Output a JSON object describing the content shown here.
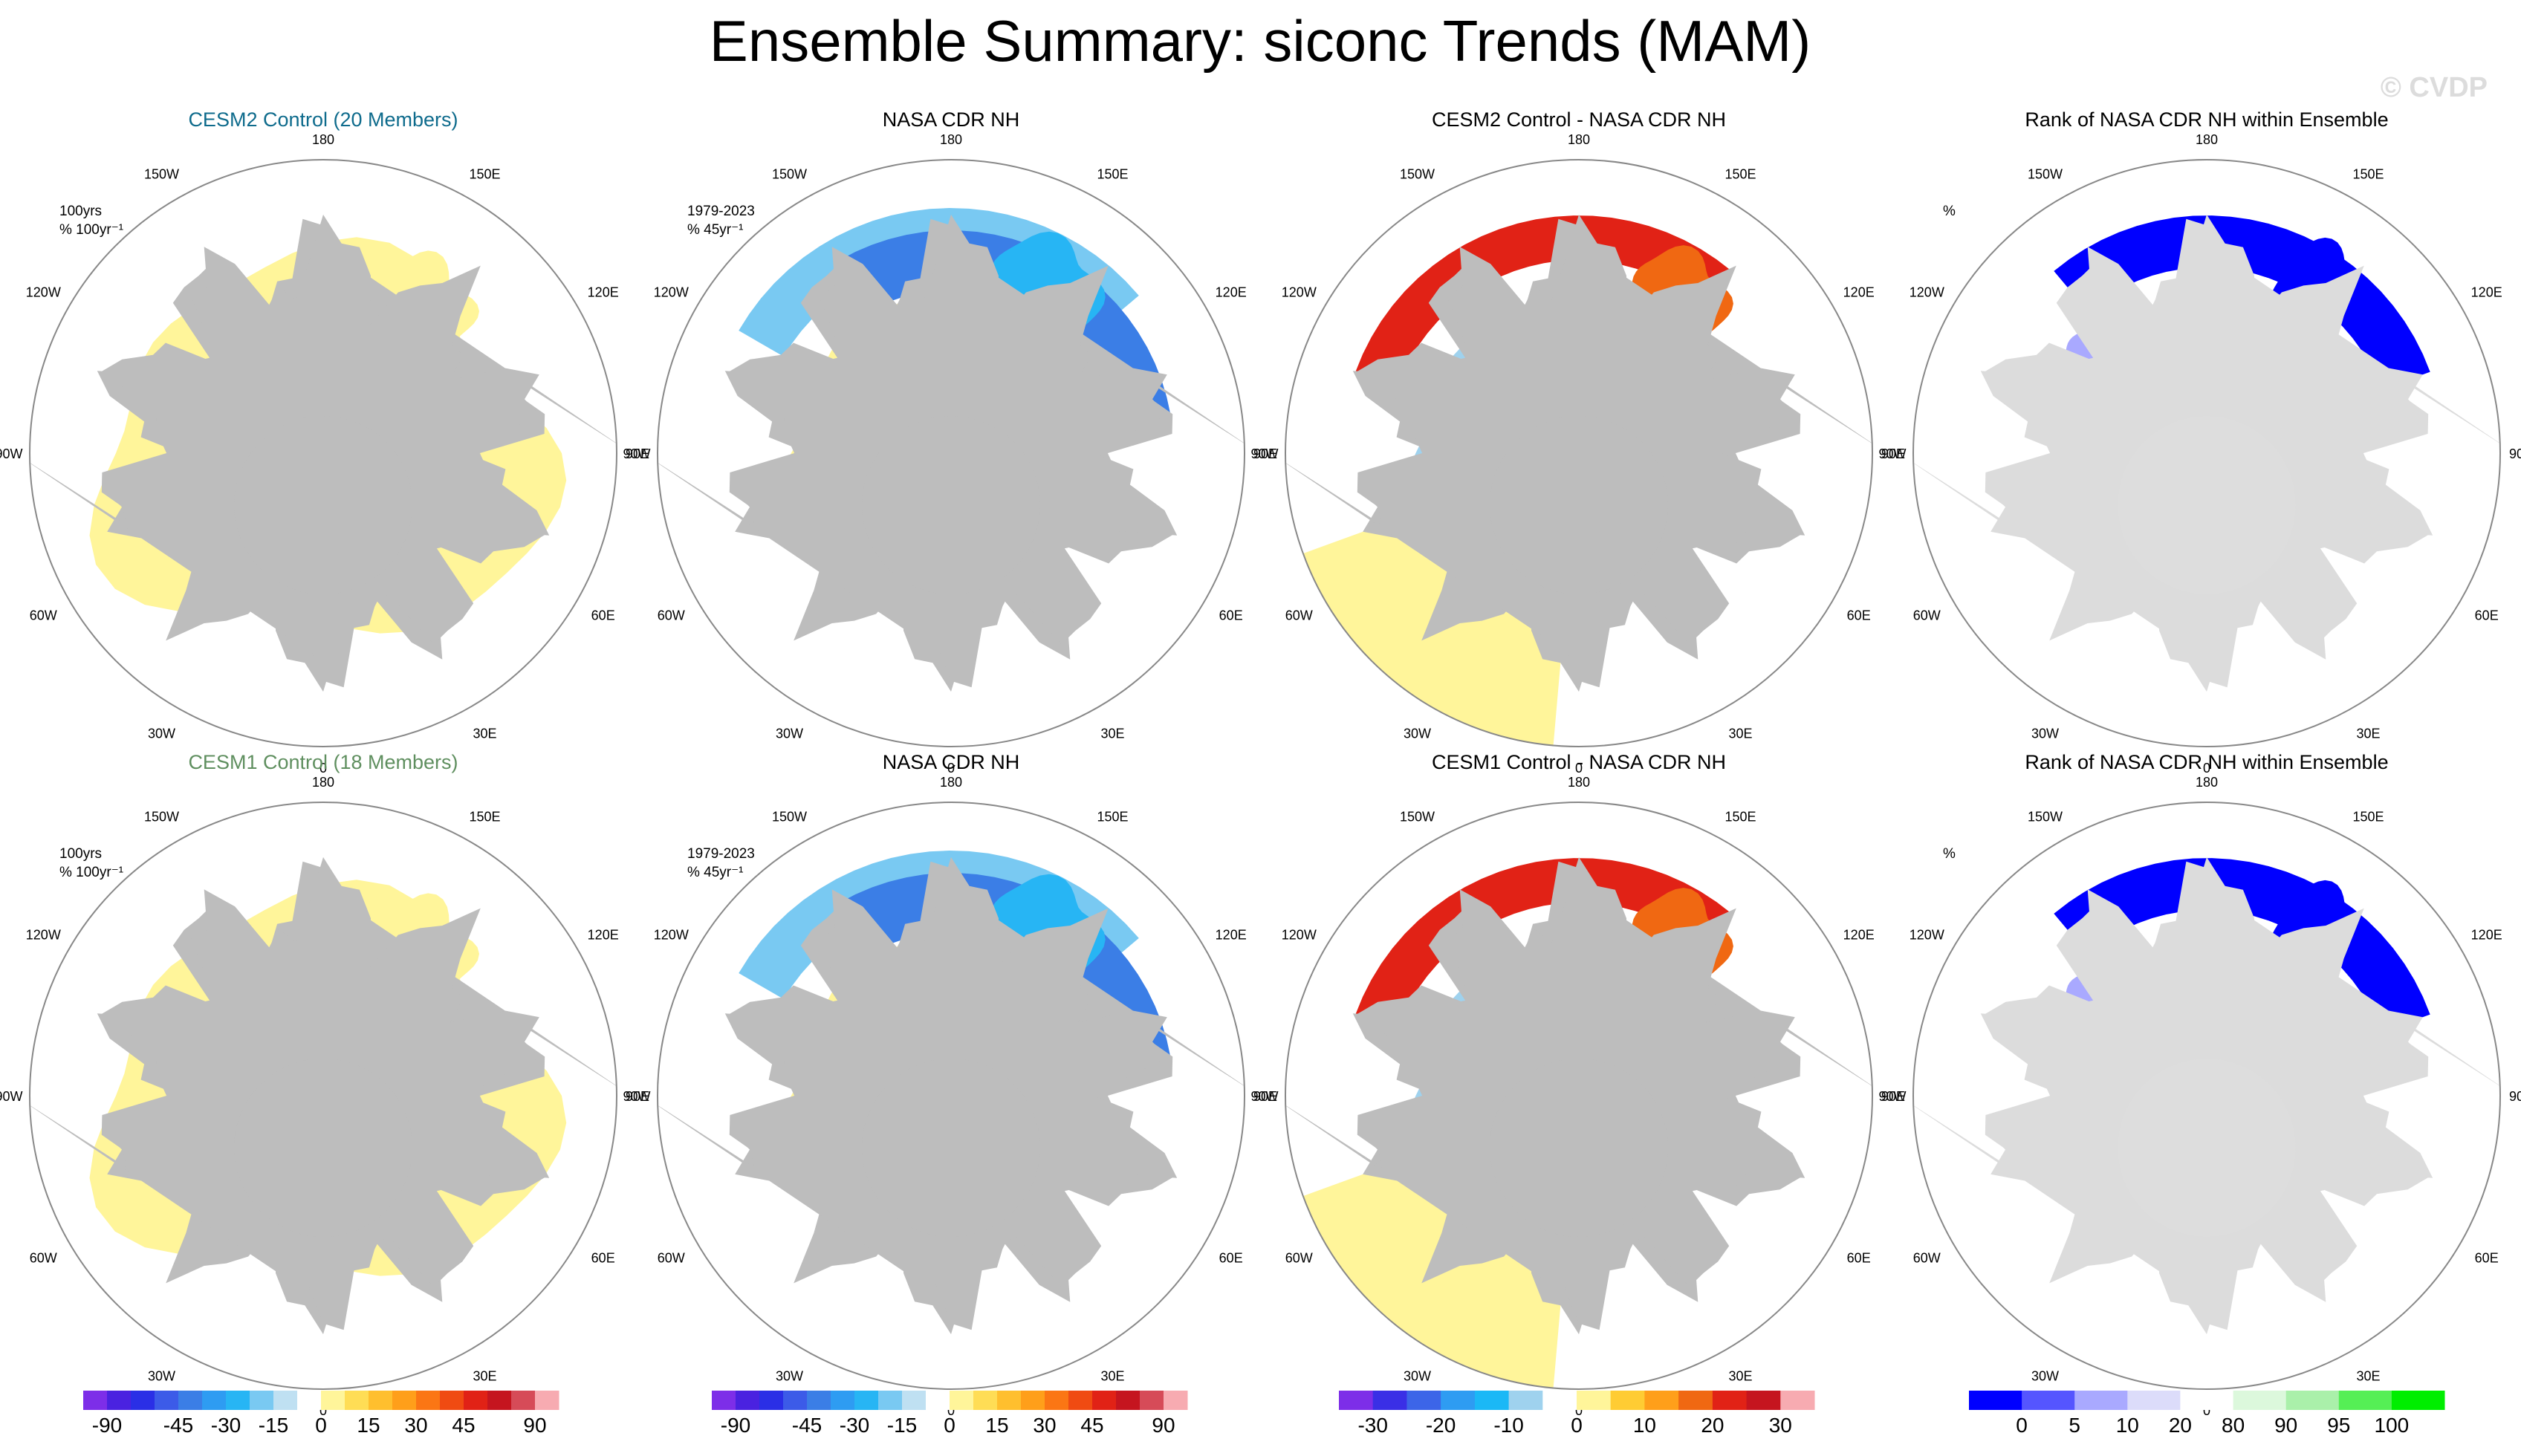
{
  "page": {
    "title": "Ensemble Summary: siconc Trends (MAM)",
    "watermark": "© CVDP"
  },
  "colors": {
    "land": "#bdbdbd",
    "rank_land": "#dcdcdc",
    "outline": "#888888",
    "cesm2_title": "#0e6b8c",
    "cesm1_title": "#5f8f5f"
  },
  "lon_labels": [
    "180",
    "150E",
    "120E",
    "90E",
    "60E",
    "30E",
    "0",
    "30W",
    "60W",
    "90W",
    "120W",
    "150W"
  ],
  "chart_data": [
    {
      "type": "heatmap",
      "projection": "north-polar-stereographic",
      "title": "CESM2 Control (20 Members)",
      "title_color": "cesm2_title",
      "annot": [
        "100yrs",
        "% 100yr⁻¹"
      ],
      "colorbar": "trend",
      "field": "model_trend"
    },
    {
      "type": "heatmap",
      "projection": "north-polar-stereographic",
      "title": "NASA CDR NH",
      "title_color": "",
      "annot": [
        "1979-2023",
        "% 45yr⁻¹"
      ],
      "colorbar": "trend",
      "field": "obs_trend"
    },
    {
      "type": "heatmap",
      "projection": "north-polar-stereographic",
      "title": "CESM2 Control - NASA CDR NH",
      "title_color": "",
      "annot": [],
      "colorbar": "diff",
      "field": "difference"
    },
    {
      "type": "heatmap",
      "projection": "north-polar-stereographic",
      "title": "Rank of NASA CDR NH within Ensemble",
      "title_color": "",
      "annot": [
        "%"
      ],
      "colorbar": "rank",
      "field": "rank"
    },
    {
      "type": "heatmap",
      "projection": "north-polar-stereographic",
      "title": "CESM1 Control (18 Members)",
      "title_color": "cesm1_title",
      "annot": [
        "100yrs",
        "% 100yr⁻¹"
      ],
      "colorbar": "trend",
      "field": "model_trend"
    },
    {
      "type": "heatmap",
      "projection": "north-polar-stereographic",
      "title": "NASA CDR NH",
      "title_color": "",
      "annot": [
        "1979-2023",
        "% 45yr⁻¹"
      ],
      "colorbar": "trend",
      "field": "obs_trend"
    },
    {
      "type": "heatmap",
      "projection": "north-polar-stereographic",
      "title": "CESM1 Control - NASA CDR NH",
      "title_color": "",
      "annot": [],
      "colorbar": "diff",
      "field": "difference"
    },
    {
      "type": "heatmap",
      "projection": "north-polar-stereographic",
      "title": "Rank of NASA CDR NH within Ensemble",
      "title_color": "",
      "annot": [
        "%"
      ],
      "colorbar": "rank",
      "field": "rank"
    }
  ],
  "colorbars": [
    {
      "name": "trend",
      "colors": [
        "#7d2ee8",
        "#4a22e0",
        "#2a2fe6",
        "#3c5be8",
        "#3b7ee6",
        "#2e9cf2",
        "#27b5f4",
        "#79c9f2",
        "#bfe0f2",
        "#ffffff",
        "#fff59a",
        "#ffdd55",
        "#ffbf2e",
        "#ff9f1a",
        "#fb7614",
        "#f04b12",
        "#e12216",
        "#c5151f",
        "#d64b58",
        "#f7abb1"
      ],
      "labels": [
        "-90",
        "-45",
        "-30",
        "-15",
        "0",
        "15",
        "30",
        "45",
        "90"
      ],
      "label_boundaries": [
        1,
        4,
        6,
        8,
        10,
        12,
        14,
        16,
        19
      ]
    },
    {
      "name": "diff",
      "colors": [
        "#7d2ee8",
        "#3a2fe6",
        "#3c65e8",
        "#2e9cf2",
        "#1bb8f6",
        "#9fd2ee",
        "#ffffff",
        "#fff59a",
        "#ffcc33",
        "#ff9f1a",
        "#f06812",
        "#e12216",
        "#c5151f",
        "#f7abb1"
      ],
      "labels": [
        "-30",
        "-20",
        "-10",
        "0",
        "10",
        "20",
        "30"
      ],
      "label_boundaries": [
        1,
        3,
        5,
        7,
        9,
        11,
        13
      ]
    },
    {
      "name": "rank",
      "colors": [
        "#0000ff",
        "#5555ff",
        "#a9a9ff",
        "#dcdcfa",
        "#ffffff",
        "#dcf8dc",
        "#aaf0aa",
        "#55ef55",
        "#00ee00"
      ],
      "labels": [
        "0",
        "5",
        "10",
        "20",
        "80",
        "90",
        "95",
        "100"
      ],
      "label_boundaries": [
        1,
        2,
        3,
        4,
        5,
        6,
        7,
        8
      ]
    }
  ]
}
